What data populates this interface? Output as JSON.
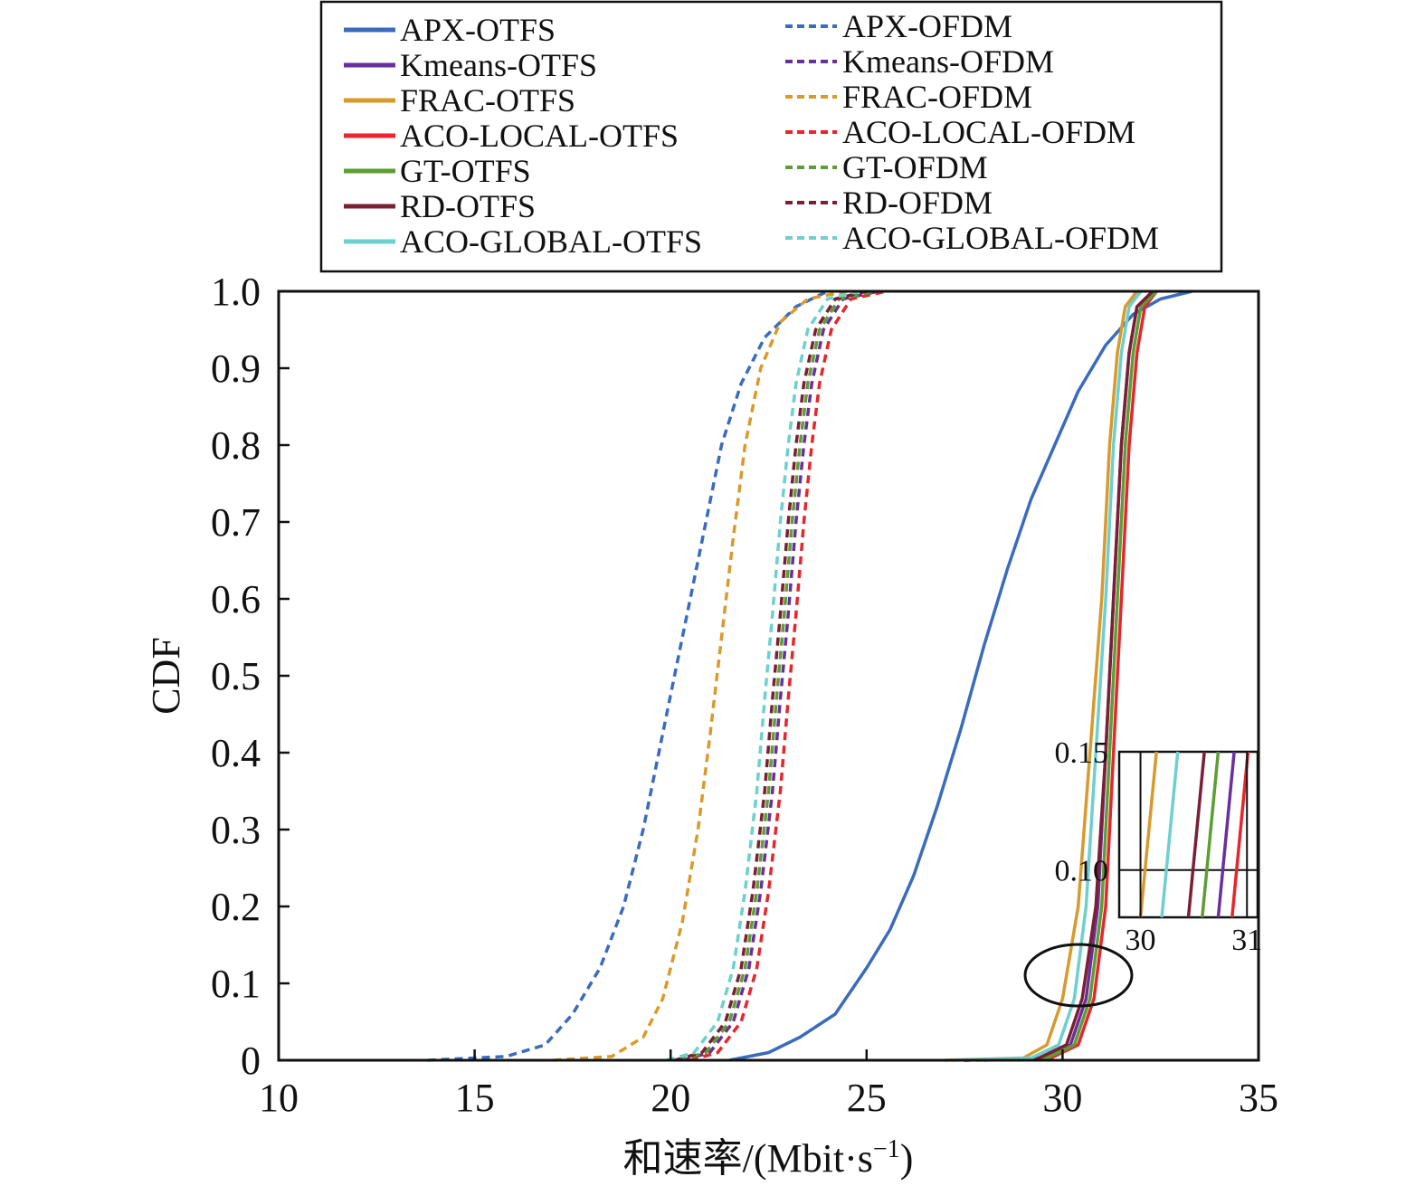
{
  "chart_data": {
    "type": "line",
    "title": "",
    "xlabel": "和速率/(Mbit·s",
    "xlabel_sup": "−1",
    "xlabel_close": ")",
    "ylabel": "CDF",
    "xlim": [
      10,
      35
    ],
    "ylim": [
      0,
      1.0
    ],
    "x_ticks": [
      "10",
      "15",
      "20",
      "25",
      "30",
      "35"
    ],
    "y_ticks": [
      "0",
      "0.1",
      "0.2",
      "0.3",
      "0.4",
      "0.5",
      "0.6",
      "0.7",
      "0.8",
      "0.9",
      "1.0"
    ],
    "grid": false,
    "legend_position": "top",
    "series": [
      {
        "name": "APX-OTFS",
        "color": "#3a6bbd",
        "style": "solid",
        "points": [
          [
            21.5,
            0
          ],
          [
            22.5,
            0.01
          ],
          [
            23.3,
            0.03
          ],
          [
            24.2,
            0.06
          ],
          [
            25.0,
            0.12
          ],
          [
            25.6,
            0.17
          ],
          [
            26.2,
            0.24
          ],
          [
            26.8,
            0.33
          ],
          [
            27.4,
            0.43
          ],
          [
            28.0,
            0.54
          ],
          [
            28.6,
            0.64
          ],
          [
            29.2,
            0.73
          ],
          [
            29.8,
            0.8
          ],
          [
            30.4,
            0.87
          ],
          [
            31.1,
            0.93
          ],
          [
            31.8,
            0.97
          ],
          [
            32.5,
            0.99
          ],
          [
            33.3,
            1.0
          ]
        ]
      },
      {
        "name": "Kmeans-OTFS",
        "color": "#6a2f9e",
        "style": "solid",
        "points": [
          [
            27.5,
            0
          ],
          [
            29.5,
            0.003
          ],
          [
            30.2,
            0.02
          ],
          [
            30.6,
            0.08
          ],
          [
            30.9,
            0.2
          ],
          [
            31.1,
            0.4
          ],
          [
            31.3,
            0.6
          ],
          [
            31.5,
            0.8
          ],
          [
            31.7,
            0.92
          ],
          [
            31.9,
            0.98
          ],
          [
            32.3,
            1.0
          ]
        ]
      },
      {
        "name": "FRAC-OTFS",
        "color": "#d89a2c",
        "style": "solid",
        "points": [
          [
            27.0,
            0
          ],
          [
            29.0,
            0.003
          ],
          [
            29.6,
            0.02
          ],
          [
            30.0,
            0.08
          ],
          [
            30.4,
            0.2
          ],
          [
            30.7,
            0.4
          ],
          [
            31.0,
            0.6
          ],
          [
            31.2,
            0.8
          ],
          [
            31.4,
            0.92
          ],
          [
            31.6,
            0.98
          ],
          [
            31.9,
            1.0
          ]
        ]
      },
      {
        "name": "ACO-LOCAL-OTFS",
        "color": "#e6262b",
        "style": "solid",
        "points": [
          [
            28.0,
            0
          ],
          [
            29.7,
            0.003
          ],
          [
            30.4,
            0.02
          ],
          [
            30.8,
            0.08
          ],
          [
            31.1,
            0.2
          ],
          [
            31.3,
            0.4
          ],
          [
            31.5,
            0.6
          ],
          [
            31.7,
            0.8
          ],
          [
            31.9,
            0.92
          ],
          [
            32.1,
            0.98
          ],
          [
            32.4,
            1.0
          ]
        ]
      },
      {
        "name": "GT-OTFS",
        "color": "#5c9e34",
        "style": "solid",
        "points": [
          [
            27.8,
            0
          ],
          [
            29.6,
            0.003
          ],
          [
            30.3,
            0.02
          ],
          [
            30.7,
            0.08
          ],
          [
            31.0,
            0.2
          ],
          [
            31.2,
            0.4
          ],
          [
            31.4,
            0.6
          ],
          [
            31.6,
            0.8
          ],
          [
            31.8,
            0.92
          ],
          [
            32.0,
            0.98
          ],
          [
            32.4,
            1.0
          ]
        ]
      },
      {
        "name": "RD-OTFS",
        "color": "#7b1f36",
        "style": "solid",
        "points": [
          [
            27.5,
            0
          ],
          [
            29.4,
            0.003
          ],
          [
            30.1,
            0.02
          ],
          [
            30.5,
            0.08
          ],
          [
            30.85,
            0.2
          ],
          [
            31.1,
            0.4
          ],
          [
            31.3,
            0.6
          ],
          [
            31.5,
            0.8
          ],
          [
            31.7,
            0.92
          ],
          [
            31.9,
            0.98
          ],
          [
            32.3,
            1.0
          ]
        ]
      },
      {
        "name": "ACO-GLOBAL-OTFS",
        "color": "#6ecfcf",
        "style": "solid",
        "points": [
          [
            27.2,
            0
          ],
          [
            29.2,
            0.003
          ],
          [
            29.9,
            0.02
          ],
          [
            30.3,
            0.08
          ],
          [
            30.6,
            0.2
          ],
          [
            30.85,
            0.4
          ],
          [
            31.1,
            0.6
          ],
          [
            31.3,
            0.8
          ],
          [
            31.5,
            0.92
          ],
          [
            31.7,
            0.98
          ],
          [
            32.0,
            1.0
          ]
        ]
      },
      {
        "name": "APX-OFDM",
        "color": "#3a6bbd",
        "style": "dashed",
        "points": [
          [
            13.8,
            0
          ],
          [
            15.8,
            0.005
          ],
          [
            16.8,
            0.02
          ],
          [
            17.5,
            0.06
          ],
          [
            18.2,
            0.12
          ],
          [
            18.8,
            0.2
          ],
          [
            19.3,
            0.3
          ],
          [
            19.7,
            0.4
          ],
          [
            20.1,
            0.5
          ],
          [
            20.5,
            0.6
          ],
          [
            20.9,
            0.7
          ],
          [
            21.3,
            0.8
          ],
          [
            21.8,
            0.88
          ],
          [
            22.4,
            0.94
          ],
          [
            23.2,
            0.98
          ],
          [
            24.0,
            1.0
          ]
        ]
      },
      {
        "name": "Kmeans-OFDM",
        "color": "#6a2f9e",
        "style": "dashed",
        "points": [
          [
            20.3,
            0
          ],
          [
            21.0,
            0.01
          ],
          [
            21.6,
            0.05
          ],
          [
            22.0,
            0.12
          ],
          [
            22.3,
            0.22
          ],
          [
            22.6,
            0.35
          ],
          [
            22.8,
            0.47
          ],
          [
            23.0,
            0.58
          ],
          [
            23.2,
            0.7
          ],
          [
            23.4,
            0.8
          ],
          [
            23.6,
            0.88
          ],
          [
            23.9,
            0.95
          ],
          [
            24.4,
            0.99
          ],
          [
            25.3,
            1.0
          ]
        ]
      },
      {
        "name": "FRAC-OFDM",
        "color": "#d89a2c",
        "style": "dashed",
        "points": [
          [
            17.0,
            0
          ],
          [
            18.5,
            0.005
          ],
          [
            19.3,
            0.03
          ],
          [
            19.8,
            0.08
          ],
          [
            20.3,
            0.18
          ],
          [
            20.7,
            0.3
          ],
          [
            21.0,
            0.42
          ],
          [
            21.3,
            0.55
          ],
          [
            21.6,
            0.68
          ],
          [
            21.9,
            0.8
          ],
          [
            22.3,
            0.9
          ],
          [
            22.8,
            0.96
          ],
          [
            23.5,
            0.99
          ],
          [
            24.5,
            1.0
          ]
        ]
      },
      {
        "name": "ACO-LOCAL-OFDM",
        "color": "#e6262b",
        "style": "dashed",
        "points": [
          [
            20.5,
            0
          ],
          [
            21.2,
            0.01
          ],
          [
            21.8,
            0.05
          ],
          [
            22.2,
            0.12
          ],
          [
            22.5,
            0.22
          ],
          [
            22.8,
            0.35
          ],
          [
            23.0,
            0.47
          ],
          [
            23.2,
            0.58
          ],
          [
            23.4,
            0.7
          ],
          [
            23.6,
            0.8
          ],
          [
            23.8,
            0.88
          ],
          [
            24.1,
            0.95
          ],
          [
            24.6,
            0.99
          ],
          [
            25.5,
            1.0
          ]
        ]
      },
      {
        "name": "GT-OFDM",
        "color": "#5c9e34",
        "style": "dashed",
        "points": [
          [
            20.2,
            0
          ],
          [
            20.9,
            0.01
          ],
          [
            21.5,
            0.05
          ],
          [
            21.9,
            0.12
          ],
          [
            22.2,
            0.22
          ],
          [
            22.5,
            0.35
          ],
          [
            22.7,
            0.47
          ],
          [
            22.9,
            0.58
          ],
          [
            23.1,
            0.7
          ],
          [
            23.3,
            0.8
          ],
          [
            23.5,
            0.88
          ],
          [
            23.8,
            0.95
          ],
          [
            24.3,
            0.99
          ],
          [
            25.2,
            1.0
          ]
        ]
      },
      {
        "name": "RD-OFDM",
        "color": "#7b1f36",
        "style": "dashed",
        "points": [
          [
            20.1,
            0
          ],
          [
            20.8,
            0.01
          ],
          [
            21.4,
            0.05
          ],
          [
            21.8,
            0.12
          ],
          [
            22.1,
            0.22
          ],
          [
            22.4,
            0.35
          ],
          [
            22.6,
            0.47
          ],
          [
            22.8,
            0.58
          ],
          [
            23.0,
            0.7
          ],
          [
            23.2,
            0.8
          ],
          [
            23.4,
            0.88
          ],
          [
            23.7,
            0.95
          ],
          [
            24.2,
            0.99
          ],
          [
            25.0,
            1.0
          ]
        ]
      },
      {
        "name": "ACO-GLOBAL-OFDM",
        "color": "#6ecfcf",
        "style": "dashed",
        "points": [
          [
            19.9,
            0
          ],
          [
            20.6,
            0.01
          ],
          [
            21.2,
            0.05
          ],
          [
            21.6,
            0.12
          ],
          [
            21.9,
            0.22
          ],
          [
            22.2,
            0.35
          ],
          [
            22.4,
            0.47
          ],
          [
            22.6,
            0.58
          ],
          [
            22.8,
            0.7
          ],
          [
            23.0,
            0.8
          ],
          [
            23.2,
            0.88
          ],
          [
            23.5,
            0.95
          ],
          [
            24.0,
            0.99
          ],
          [
            24.8,
            1.0
          ]
        ]
      }
    ],
    "inset": {
      "xlim": [
        29.8,
        31.1
      ],
      "ylim": [
        0.08,
        0.15
      ],
      "x_ticks": [
        "30",
        "31"
      ],
      "y_ticks": [
        "0.10",
        "0.15"
      ],
      "gridlines_y": [
        0.1
      ],
      "series_order": [
        "FRAC-OTFS",
        "ACO-GLOBAL-OTFS",
        "RD-OTFS",
        "GT-OTFS",
        "Kmeans-OTFS",
        "ACO-LOCAL-OTFS"
      ],
      "x_at_008": [
        30.0,
        30.2,
        30.45,
        30.58,
        30.73,
        30.86
      ],
      "x_at_015": [
        30.15,
        30.35,
        30.6,
        30.73,
        30.88,
        31.01
      ]
    }
  }
}
